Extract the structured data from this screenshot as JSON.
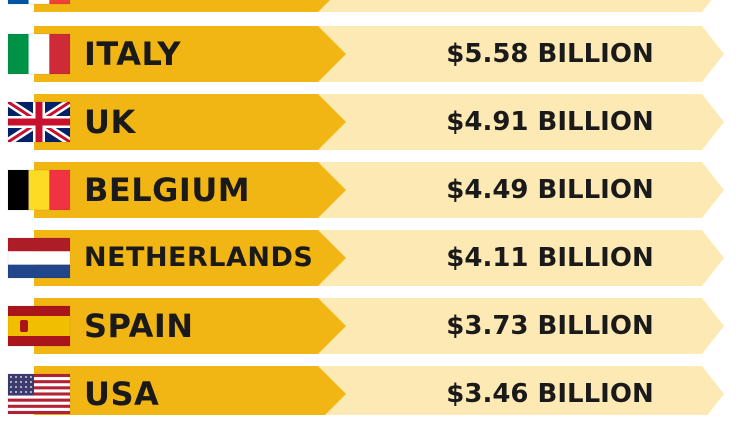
{
  "chart_data": {
    "type": "table",
    "title": "",
    "colors": {
      "label_band": "#f2b614",
      "value_band": "#fde9b3",
      "text": "#1a1a1a"
    },
    "rows": [
      {
        "country": "",
        "value_label": "",
        "flag": "france-flag",
        "partial": true
      },
      {
        "country": "ITALY",
        "value": 5.58,
        "value_label": "$5.58 BILLION",
        "flag": "italy-flag"
      },
      {
        "country": "UK",
        "value": 4.91,
        "value_label": "$4.91 BILLION",
        "flag": "uk-flag"
      },
      {
        "country": "BELGIUM",
        "value": 4.49,
        "value_label": "$4.49 BILLION",
        "flag": "belgium-flag"
      },
      {
        "country": "NETHERLANDS",
        "value": 4.11,
        "value_label": "$4.11 BILLION",
        "flag": "netherlands-flag"
      },
      {
        "country": "SPAIN",
        "value": 3.73,
        "value_label": "$3.73 BILLION",
        "flag": "spain-flag"
      },
      {
        "country": "USA",
        "value": 3.46,
        "value_label": "$3.46 BILLION",
        "flag": "usa-flag"
      }
    ]
  }
}
